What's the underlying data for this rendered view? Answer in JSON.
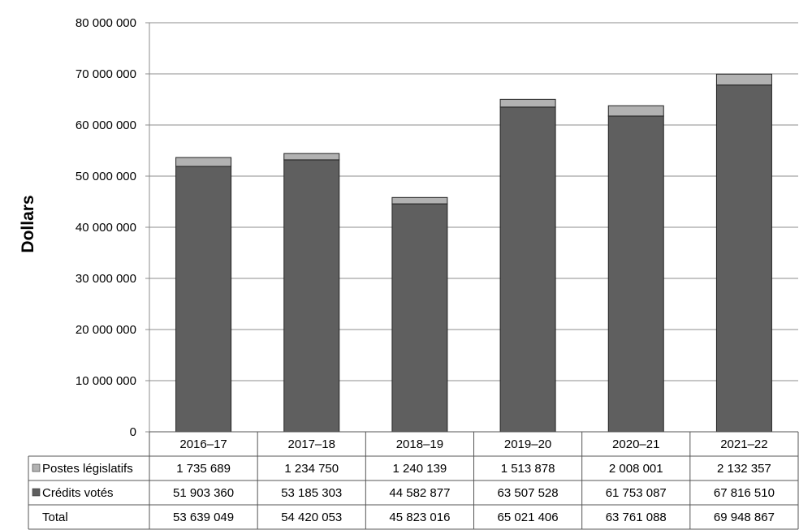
{
  "chart_data": {
    "type": "bar",
    "stacked": true,
    "ylabel": "Dollars",
    "ylim": [
      0,
      80000000
    ],
    "yticks": [
      0,
      10000000,
      20000000,
      30000000,
      40000000,
      50000000,
      60000000,
      70000000,
      80000000
    ],
    "ytick_labels": [
      "0",
      "10 000 000",
      "20 000 000",
      "30 000 000",
      "40 000 000",
      "50 000 000",
      "60 000 000",
      "70 000 000",
      "80 000 000"
    ],
    "grid": true,
    "categories": [
      "2016–17",
      "2017–18",
      "2018–19",
      "2019–20",
      "2020–21",
      "2021–22"
    ],
    "series": [
      {
        "name": "Crédits votés",
        "color": "#5f5f5f",
        "values": [
          51903360,
          53185303,
          44582877,
          63507528,
          61753087,
          67816510
        ],
        "labels": [
          "51 903 360",
          "53 185 303",
          "44 582 877",
          "63 507 528",
          "61 753 087",
          "67 816 510"
        ]
      },
      {
        "name": "Postes législatifs",
        "color": "#b2b2b2",
        "values": [
          1735689,
          1234750,
          1240139,
          1513878,
          2008001,
          2132357
        ],
        "labels": [
          "1 735 689",
          "1 234 750",
          "1 240 139",
          "1 513 878",
          "2 008 001",
          "2 132 357"
        ]
      }
    ],
    "total": {
      "name": "Total",
      "values": [
        53639049,
        54420053,
        45823016,
        65021406,
        63761088,
        69948867
      ],
      "labels": [
        "53 639 049",
        "54 420 053",
        "45 823 016",
        "65 021 406",
        "63 761 088",
        "69 948 867"
      ]
    },
    "table_rows": [
      "Postes législatifs",
      "Crédits votés",
      "Total"
    ]
  }
}
